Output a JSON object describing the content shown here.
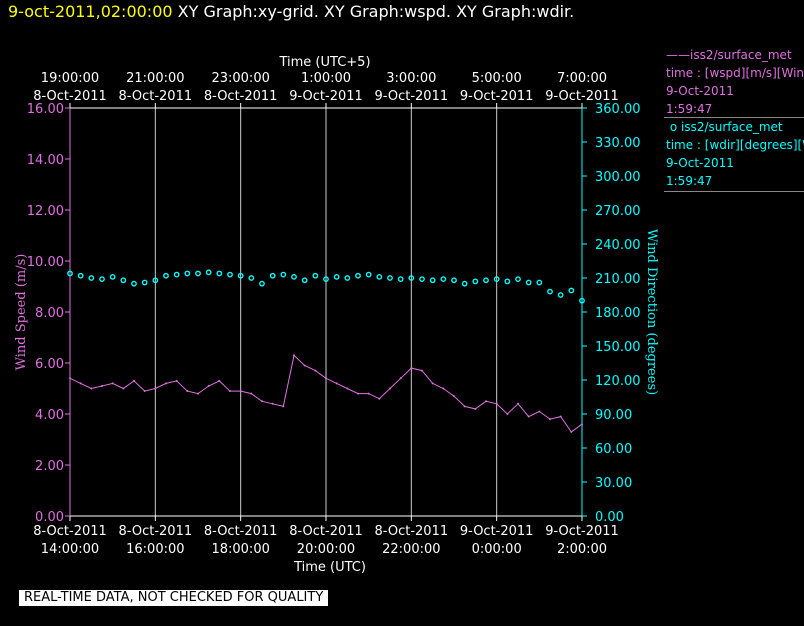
{
  "header": {
    "datetime": "9-oct-2011,02:00:00",
    "titles": [
      "XY Graph:xy-grid.",
      "XY Graph:wspd.",
      "XY Graph:wdir."
    ]
  },
  "legend": {
    "wspd": {
      "line1": "iss2/surface_met",
      "line2": "time : [wspd][m/s][Wind",
      "line3": "9-Oct-2011",
      "line4": "1:59:47",
      "color": "#e070e0"
    },
    "wdir": {
      "line1": "iss2/surface_met",
      "line2": "time : [wdir][degrees][W",
      "line3": "9-Oct-2011",
      "line4": "1:59:47",
      "color": "#00ffff"
    }
  },
  "notice": "REAL-TIME DATA, NOT CHECKED FOR QUALITY",
  "chart_data": {
    "type": "line",
    "top_axis_label": "Time (UTC+5)",
    "top_ticks": [
      {
        "time": "19:00:00",
        "date": "8-Oct-2011"
      },
      {
        "time": "21:00:00",
        "date": "8-Oct-2011"
      },
      {
        "time": "23:00:00",
        "date": "8-Oct-2011"
      },
      {
        "time": "1:00:00",
        "date": "9-Oct-2011"
      },
      {
        "time": "3:00:00",
        "date": "9-Oct-2011"
      },
      {
        "time": "5:00:00",
        "date": "9-Oct-2011"
      },
      {
        "time": "7:00:00",
        "date": "9-Oct-2011"
      }
    ],
    "xlabel": "Time (UTC)",
    "bottom_ticks": [
      {
        "date": "8-Oct-2011",
        "time": "14:00:00"
      },
      {
        "date": "8-Oct-2011",
        "time": "16:00:00"
      },
      {
        "date": "8-Oct-2011",
        "time": "18:00:00"
      },
      {
        "date": "8-Oct-2011",
        "time": "20:00:00"
      },
      {
        "date": "8-Oct-2011",
        "time": "22:00:00"
      },
      {
        "date": "9-Oct-2011",
        "time": "0:00:00"
      },
      {
        "date": "9-Oct-2011",
        "time": "2:00:00"
      }
    ],
    "xlim_hours_utc": [
      14,
      26
    ],
    "ylabel_left": "Wind Speed (m/s)",
    "ylim_left": [
      0,
      16
    ],
    "yticks_left": [
      "0.00",
      "2.00",
      "4.00",
      "6.00",
      "8.00",
      "10.00",
      "12.00",
      "14.00",
      "16.00"
    ],
    "ylabel_right": "Wind Direction (degrees)",
    "ylim_right": [
      0,
      360
    ],
    "yticks_right": [
      "0.00",
      "30.00",
      "60.00",
      "90.00",
      "120.00",
      "150.00",
      "180.00",
      "210.00",
      "240.00",
      "270.00",
      "300.00",
      "330.00",
      "360.00"
    ],
    "grid": "vertical",
    "series": [
      {
        "name": "iss2/surface_met",
        "variable": "wspd",
        "axis": "left",
        "style": "line",
        "color": "#e070e0",
        "x_hours_utc": [
          14.0,
          14.25,
          14.5,
          14.75,
          15.0,
          15.25,
          15.5,
          15.75,
          16.0,
          16.25,
          16.5,
          16.75,
          17.0,
          17.25,
          17.5,
          17.75,
          18.0,
          18.25,
          18.5,
          18.75,
          19.0,
          19.25,
          19.5,
          19.75,
          20.0,
          20.25,
          20.5,
          20.75,
          21.0,
          21.25,
          21.5,
          21.75,
          22.0,
          22.25,
          22.5,
          22.75,
          23.0,
          23.25,
          23.5,
          23.75,
          24.0,
          24.25,
          24.5,
          24.75,
          25.0,
          25.25,
          25.5,
          25.75,
          26.0
        ],
        "values": [
          5.4,
          5.2,
          5.0,
          5.1,
          5.2,
          5.0,
          5.3,
          4.9,
          5.0,
          5.2,
          5.3,
          4.9,
          4.8,
          5.1,
          5.3,
          4.9,
          4.9,
          4.8,
          4.5,
          4.4,
          4.3,
          6.3,
          5.9,
          5.7,
          5.4,
          5.2,
          5.0,
          4.8,
          4.8,
          4.6,
          5.0,
          5.4,
          5.8,
          5.7,
          5.2,
          5.0,
          4.7,
          4.3,
          4.2,
          4.5,
          4.4,
          4.0,
          4.4,
          3.9,
          4.1,
          3.8,
          3.9,
          3.3,
          3.6
        ]
      },
      {
        "name": "iss2/surface_met",
        "variable": "wdir",
        "axis": "right",
        "style": "circles",
        "color": "#00ffff",
        "x_hours_utc": [
          14.0,
          14.25,
          14.5,
          14.75,
          15.0,
          15.25,
          15.5,
          15.75,
          16.0,
          16.25,
          16.5,
          16.75,
          17.0,
          17.25,
          17.5,
          17.75,
          18.0,
          18.25,
          18.5,
          18.75,
          19.0,
          19.25,
          19.5,
          19.75,
          20.0,
          20.25,
          20.5,
          20.75,
          21.0,
          21.25,
          21.5,
          21.75,
          22.0,
          22.25,
          22.5,
          22.75,
          23.0,
          23.25,
          23.5,
          23.75,
          24.0,
          24.25,
          24.5,
          24.75,
          25.0,
          25.25,
          25.5,
          25.75,
          26.0
        ],
        "values": [
          214,
          212,
          210,
          209,
          211,
          208,
          205,
          206,
          208,
          212,
          213,
          214,
          214,
          215,
          214,
          213,
          212,
          210,
          205,
          212,
          213,
          211,
          208,
          212,
          209,
          211,
          210,
          212,
          213,
          211,
          210,
          209,
          210,
          209,
          208,
          209,
          208,
          205,
          207,
          208,
          209,
          207,
          209,
          206,
          206,
          198,
          195,
          199,
          190
        ]
      }
    ]
  }
}
